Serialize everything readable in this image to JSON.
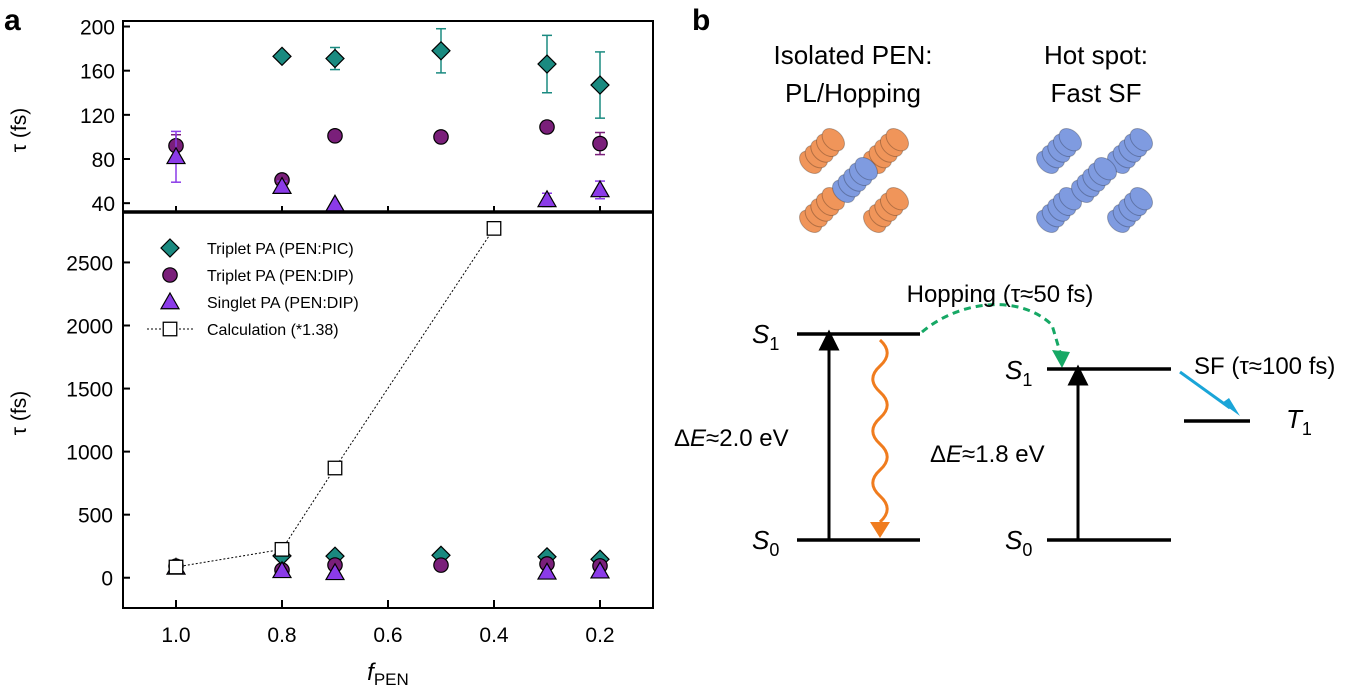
{
  "panel_labels": {
    "a": "a",
    "b": "b"
  },
  "chart_data": [
    {
      "type": "scatter",
      "name": "upper",
      "ylabel": "τ (fs)",
      "xlim": [
        1.1,
        0.1
      ],
      "ylim": [
        32,
        205
      ],
      "yticks": [
        "40",
        "80",
        "120",
        "160",
        "200"
      ],
      "ytick_values": [
        40,
        80,
        120,
        160,
        200
      ],
      "series": [
        {
          "name": "Triplet PA (PEN:PIC)",
          "color": "#1a8a80",
          "marker": "diamond",
          "x": [
            0.8,
            0.7,
            0.5,
            0.3,
            0.2
          ],
          "y": [
            173,
            171,
            178,
            166,
            147
          ],
          "err": [
            0,
            10,
            20,
            26,
            30
          ]
        },
        {
          "name": "Triplet PA (PEN:DIP)",
          "color": "#7a1f7a",
          "marker": "circle",
          "x": [
            1.0,
            0.8,
            0.7,
            0.5,
            0.3,
            0.2
          ],
          "y": [
            92,
            61,
            101,
            100,
            109,
            94
          ],
          "err": [
            10,
            0,
            0,
            0,
            5,
            10
          ]
        },
        {
          "name": "Singlet PA (PEN:DIP)",
          "color": "#8b3be8",
          "marker": "triangle",
          "x": [
            1.0,
            0.8,
            0.7,
            0.3,
            0.2
          ],
          "y": [
            82,
            55,
            39,
            43,
            52
          ],
          "err": [
            23,
            5,
            0,
            6,
            8
          ]
        }
      ]
    },
    {
      "type": "line",
      "name": "lower",
      "xlabel_main": "f",
      "xlabel_sub": "PEN",
      "ylabel": "τ (fs)",
      "xlim": [
        1.1,
        0.1
      ],
      "ylim": [
        -240,
        2900
      ],
      "xticks": [
        "1.0",
        "0.8",
        "0.6",
        "0.4",
        "0.2"
      ],
      "xtick_values": [
        1.0,
        0.8,
        0.6,
        0.4,
        0.2
      ],
      "yticks": [
        "0",
        "500",
        "1000",
        "1500",
        "2000",
        "2500"
      ],
      "ytick_values": [
        0,
        500,
        1000,
        1500,
        2000,
        2500
      ],
      "legend": [
        "Triplet PA (PEN:PIC)",
        "Triplet PA (PEN:DIP)",
        "Singlet PA (PEN:DIP)",
        "Calculation (*1.38)"
      ],
      "series": [
        {
          "name": "Triplet PA (PEN:PIC)",
          "color": "#1a8a80",
          "marker": "diamond",
          "x": [
            0.8,
            0.7,
            0.5,
            0.3,
            0.2
          ],
          "y": [
            173,
            171,
            178,
            166,
            147
          ]
        },
        {
          "name": "Triplet PA (PEN:DIP)",
          "color": "#7a1f7a",
          "marker": "circle",
          "x": [
            1.0,
            0.8,
            0.7,
            0.5,
            0.3,
            0.2
          ],
          "y": [
            92,
            61,
            101,
            100,
            109,
            94
          ]
        },
        {
          "name": "Singlet PA (PEN:DIP)",
          "color": "#8b3be8",
          "marker": "triangle",
          "x": [
            1.0,
            0.8,
            0.7,
            0.3,
            0.2
          ],
          "y": [
            82,
            55,
            39,
            43,
            52
          ]
        },
        {
          "name": "Calculation (*1.38)",
          "color": "#000000",
          "marker": "open-square",
          "x": [
            1.0,
            0.8,
            0.7,
            0.4
          ],
          "y": [
            85,
            225,
            870,
            2770
          ]
        }
      ]
    }
  ],
  "diagram": {
    "isolated_title_1": "Isolated PEN:",
    "isolated_title_2": "PL/Hopping",
    "hotspot_title_1": "Hot spot:",
    "hotspot_title_2": "Fast SF",
    "molecule_colors": {
      "isolated_outer": "#f0955a",
      "blue": "#7f9be0"
    },
    "hopping_label": "Hopping (τ≈50 fs)",
    "hopping_color": "#16a865",
    "sf_label": "SF (τ≈100 fs)",
    "sf_color": "#1aa5d8",
    "pl_color": "#f07c1e",
    "S": "S",
    "T": "T",
    "sub_1": "1",
    "sub_0": "0",
    "dE_left_prefix": "Δ",
    "dE_var": "E",
    "dE_left_value": "≈2.0 eV",
    "dE_right_value": "≈1.8 eV"
  }
}
